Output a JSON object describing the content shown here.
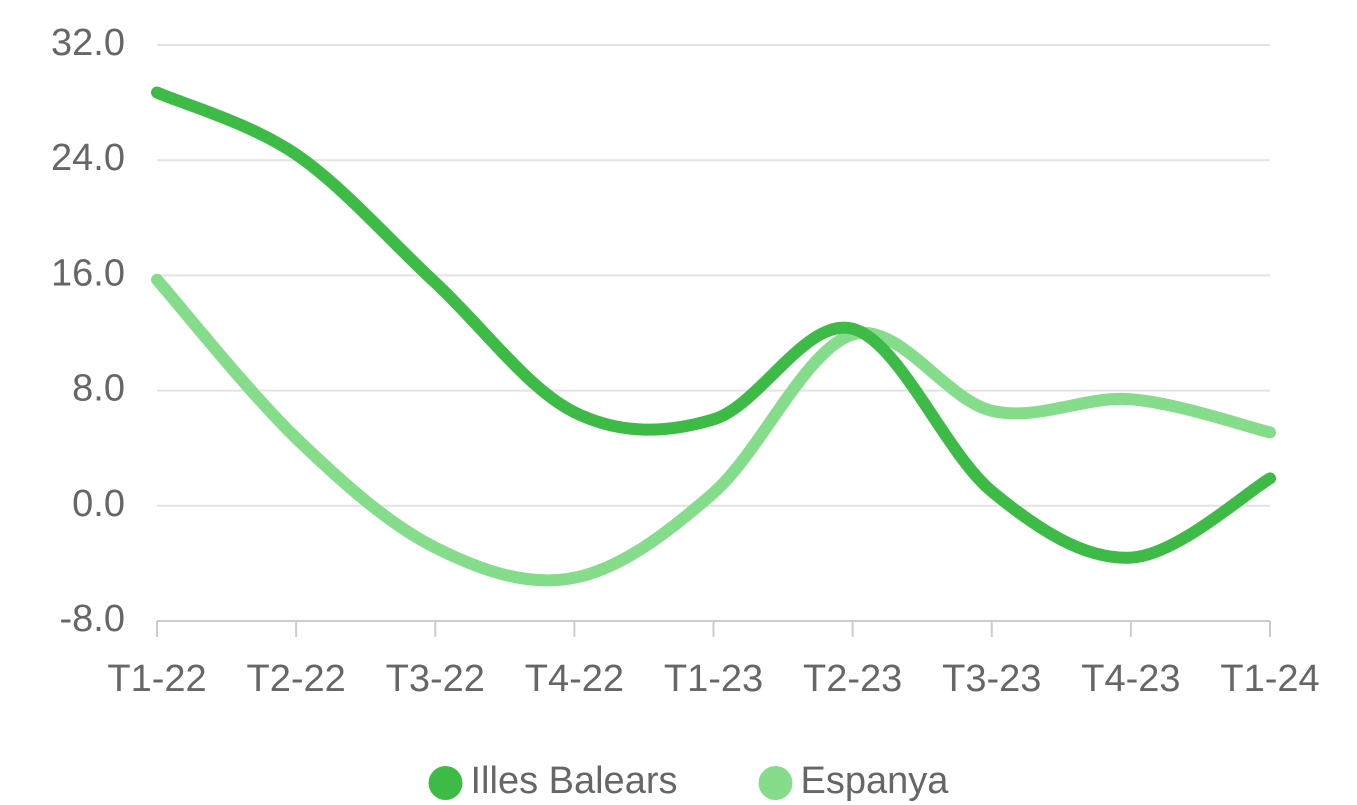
{
  "chart_data": {
    "type": "line",
    "categories": [
      "T1-22",
      "T2-22",
      "T3-22",
      "T4-22",
      "T1-23",
      "T2-23",
      "T3-23",
      "T4-23",
      "T1-24"
    ],
    "series": [
      {
        "name": "Illes Balears",
        "color": "#3dbb46",
        "values": [
          28.7,
          24.4,
          15.5,
          6.5,
          6.0,
          12.3,
          1.0,
          -3.6,
          1.9
        ]
      },
      {
        "name": "Espanya",
        "color": "#85dc8a",
        "values": [
          15.7,
          4.7,
          -2.9,
          -5.0,
          0.9,
          11.9,
          6.6,
          7.4,
          5.1
        ]
      }
    ],
    "ylim": [
      -8,
      32
    ],
    "yticks": [
      {
        "value": -8,
        "label": "-8.0"
      },
      {
        "value": 0,
        "label": "0.0"
      },
      {
        "value": 8,
        "label": "8.0"
      },
      {
        "value": 16,
        "label": "16.0"
      },
      {
        "value": 24,
        "label": "24.0"
      },
      {
        "value": 32,
        "label": "32.0"
      }
    ],
    "grid": true,
    "legend": "bottom"
  }
}
